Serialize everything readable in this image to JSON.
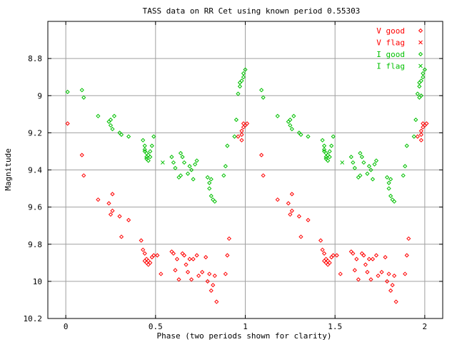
{
  "chart_data": {
    "type": "scatter",
    "title": "TASS data on RR Cet  using known period 0.55303",
    "xlabel": "Phase (two periods shown for clarity)",
    "ylabel": "Magnitude",
    "xlim": [
      -0.1,
      2.1
    ],
    "ylim": [
      10.2,
      8.6
    ],
    "y_inverted": true,
    "grid": true,
    "legend_position": "top-right",
    "x_ticks": [
      0,
      0.5,
      1,
      1.5,
      2
    ],
    "x_tick_labels": [
      "0",
      "0.5",
      "1",
      "1.5",
      "2"
    ],
    "y_ticks": [
      8.8,
      9,
      9.2,
      9.4,
      9.6,
      9.8,
      10,
      10.2
    ],
    "y_tick_labels": [
      "8.8",
      "9",
      "9.2",
      "9.4",
      "9.6",
      "9.8",
      "10",
      "10.2"
    ],
    "series": [
      {
        "name": "V good",
        "marker": "diamond",
        "color": "#ff0000",
        "points": [
          [
            0.01,
            9.15
          ],
          [
            0.09,
            9.32
          ],
          [
            0.1,
            9.43
          ],
          [
            0.18,
            9.56
          ],
          [
            0.24,
            9.58
          ],
          [
            0.25,
            9.64
          ],
          [
            0.26,
            9.62
          ],
          [
            0.26,
            9.53
          ],
          [
            0.3,
            9.65
          ],
          [
            0.31,
            9.76
          ],
          [
            0.35,
            9.67
          ],
          [
            0.42,
            9.78
          ],
          [
            0.43,
            9.83
          ],
          [
            0.44,
            9.89
          ],
          [
            0.44,
            9.85
          ],
          [
            0.45,
            9.9
          ],
          [
            0.45,
            9.88
          ],
          [
            0.46,
            9.91
          ],
          [
            0.46,
            9.89
          ],
          [
            0.47,
            9.9
          ],
          [
            0.48,
            9.87
          ],
          [
            0.49,
            9.86
          ],
          [
            0.51,
            9.86
          ],
          [
            0.53,
            9.96
          ],
          [
            0.59,
            9.84
          ],
          [
            0.6,
            9.85
          ],
          [
            0.61,
            9.94
          ],
          [
            0.62,
            9.88
          ],
          [
            0.63,
            9.99
          ],
          [
            0.65,
            9.85
          ],
          [
            0.66,
            9.86
          ],
          [
            0.67,
            9.91
          ],
          [
            0.68,
            9.95
          ],
          [
            0.69,
            9.88
          ],
          [
            0.7,
            9.99
          ],
          [
            0.71,
            9.88
          ],
          [
            0.73,
            9.86
          ],
          [
            0.74,
            9.97
          ],
          [
            0.76,
            9.95
          ],
          [
            0.78,
            9.87
          ],
          [
            0.79,
            10.0
          ],
          [
            0.8,
            9.96
          ],
          [
            0.81,
            10.05
          ],
          [
            0.82,
            10.02
          ],
          [
            0.83,
            9.97
          ],
          [
            0.84,
            10.11
          ],
          [
            0.89,
            9.96
          ],
          [
            0.9,
            9.86
          ],
          [
            0.91,
            9.77
          ],
          [
            0.96,
            9.22
          ],
          [
            0.98,
            9.24
          ],
          [
            0.98,
            9.21
          ],
          [
            0.98,
            9.19
          ],
          [
            0.99,
            9.17
          ],
          [
            0.99,
            9.15
          ],
          [
            1.0,
            9.16
          ],
          [
            1.01,
            9.15
          ],
          [
            1.09,
            9.32
          ],
          [
            1.1,
            9.43
          ],
          [
            1.18,
            9.56
          ],
          [
            1.24,
            9.58
          ],
          [
            1.25,
            9.64
          ],
          [
            1.26,
            9.62
          ],
          [
            1.26,
            9.53
          ],
          [
            1.3,
            9.65
          ],
          [
            1.31,
            9.76
          ],
          [
            1.35,
            9.67
          ],
          [
            1.42,
            9.78
          ],
          [
            1.43,
            9.83
          ],
          [
            1.44,
            9.89
          ],
          [
            1.44,
            9.85
          ],
          [
            1.45,
            9.9
          ],
          [
            1.45,
            9.88
          ],
          [
            1.46,
            9.91
          ],
          [
            1.46,
            9.89
          ],
          [
            1.47,
            9.9
          ],
          [
            1.48,
            9.87
          ],
          [
            1.49,
            9.86
          ],
          [
            1.51,
            9.86
          ],
          [
            1.53,
            9.96
          ],
          [
            1.59,
            9.84
          ],
          [
            1.6,
            9.85
          ],
          [
            1.61,
            9.94
          ],
          [
            1.62,
            9.88
          ],
          [
            1.63,
            9.99
          ],
          [
            1.65,
            9.85
          ],
          [
            1.66,
            9.86
          ],
          [
            1.67,
            9.91
          ],
          [
            1.68,
            9.95
          ],
          [
            1.69,
            9.88
          ],
          [
            1.7,
            9.99
          ],
          [
            1.71,
            9.88
          ],
          [
            1.73,
            9.86
          ],
          [
            1.74,
            9.97
          ],
          [
            1.76,
            9.95
          ],
          [
            1.78,
            9.87
          ],
          [
            1.79,
            10.0
          ],
          [
            1.8,
            9.96
          ],
          [
            1.81,
            10.05
          ],
          [
            1.82,
            10.02
          ],
          [
            1.83,
            9.97
          ],
          [
            1.84,
            10.11
          ],
          [
            1.89,
            9.96
          ],
          [
            1.9,
            9.86
          ],
          [
            1.91,
            9.77
          ],
          [
            1.96,
            9.22
          ],
          [
            1.98,
            9.24
          ],
          [
            1.98,
            9.21
          ],
          [
            1.98,
            9.19
          ],
          [
            1.99,
            9.17
          ],
          [
            1.99,
            9.15
          ],
          [
            2.0,
            9.16
          ],
          [
            2.01,
            9.15
          ]
        ]
      },
      {
        "name": "V flag",
        "marker": "cross",
        "color": "#ff0000",
        "points": []
      },
      {
        "name": "I good",
        "marker": "diamond",
        "color": "#00c000",
        "points": [
          [
            0.01,
            8.98
          ],
          [
            0.09,
            8.97
          ],
          [
            0.1,
            9.01
          ],
          [
            0.18,
            9.11
          ],
          [
            0.24,
            9.14
          ],
          [
            0.25,
            9.16
          ],
          [
            0.25,
            9.13
          ],
          [
            0.26,
            9.18
          ],
          [
            0.27,
            9.11
          ],
          [
            0.3,
            9.2
          ],
          [
            0.31,
            9.21
          ],
          [
            0.35,
            9.22
          ],
          [
            0.43,
            9.24
          ],
          [
            0.44,
            9.29
          ],
          [
            0.44,
            9.27
          ],
          [
            0.44,
            9.3
          ],
          [
            0.45,
            9.31
          ],
          [
            0.45,
            9.33
          ],
          [
            0.45,
            9.34
          ],
          [
            0.46,
            9.32
          ],
          [
            0.46,
            9.35
          ],
          [
            0.47,
            9.33
          ],
          [
            0.47,
            9.3
          ],
          [
            0.48,
            9.27
          ],
          [
            0.49,
            9.22
          ],
          [
            0.59,
            9.33
          ],
          [
            0.6,
            9.36
          ],
          [
            0.61,
            9.39
          ],
          [
            0.63,
            9.44
          ],
          [
            0.64,
            9.43
          ],
          [
            0.64,
            9.31
          ],
          [
            0.65,
            9.33
          ],
          [
            0.66,
            9.36
          ],
          [
            0.68,
            9.42
          ],
          [
            0.69,
            9.38
          ],
          [
            0.7,
            9.4
          ],
          [
            0.71,
            9.45
          ],
          [
            0.72,
            9.37
          ],
          [
            0.73,
            9.35
          ],
          [
            0.79,
            9.44
          ],
          [
            0.8,
            9.47
          ],
          [
            0.8,
            9.5
          ],
          [
            0.81,
            9.45
          ],
          [
            0.81,
            9.54
          ],
          [
            0.82,
            9.56
          ],
          [
            0.83,
            9.57
          ],
          [
            0.88,
            9.43
          ],
          [
            0.89,
            9.38
          ],
          [
            0.9,
            9.27
          ],
          [
            0.94,
            9.22
          ],
          [
            0.95,
            9.13
          ],
          [
            0.96,
            8.99
          ],
          [
            0.97,
            8.93
          ],
          [
            0.97,
            8.95
          ],
          [
            0.98,
            8.92
          ],
          [
            0.99,
            8.9
          ],
          [
            0.99,
            8.88
          ],
          [
            1.0,
            8.86
          ],
          [
            1.09,
            8.97
          ],
          [
            1.1,
            9.01
          ],
          [
            1.18,
            9.11
          ],
          [
            1.24,
            9.14
          ],
          [
            1.25,
            9.16
          ],
          [
            1.25,
            9.13
          ],
          [
            1.26,
            9.18
          ],
          [
            1.27,
            9.11
          ],
          [
            1.3,
            9.2
          ],
          [
            1.31,
            9.21
          ],
          [
            1.35,
            9.22
          ],
          [
            1.43,
            9.24
          ],
          [
            1.44,
            9.29
          ],
          [
            1.44,
            9.27
          ],
          [
            1.44,
            9.3
          ],
          [
            1.45,
            9.31
          ],
          [
            1.45,
            9.33
          ],
          [
            1.45,
            9.34
          ],
          [
            1.46,
            9.32
          ],
          [
            1.46,
            9.35
          ],
          [
            1.47,
            9.33
          ],
          [
            1.47,
            9.3
          ],
          [
            1.48,
            9.27
          ],
          [
            1.49,
            9.22
          ],
          [
            1.59,
            9.33
          ],
          [
            1.6,
            9.36
          ],
          [
            1.61,
            9.39
          ],
          [
            1.63,
            9.44
          ],
          [
            1.64,
            9.43
          ],
          [
            1.64,
            9.31
          ],
          [
            1.65,
            9.33
          ],
          [
            1.66,
            9.36
          ],
          [
            1.68,
            9.42
          ],
          [
            1.69,
            9.38
          ],
          [
            1.7,
            9.4
          ],
          [
            1.71,
            9.45
          ],
          [
            1.72,
            9.37
          ],
          [
            1.73,
            9.35
          ],
          [
            1.79,
            9.44
          ],
          [
            1.8,
            9.47
          ],
          [
            1.8,
            9.5
          ],
          [
            1.81,
            9.45
          ],
          [
            1.81,
            9.54
          ],
          [
            1.82,
            9.56
          ],
          [
            1.83,
            9.57
          ],
          [
            1.88,
            9.43
          ],
          [
            1.89,
            9.38
          ],
          [
            1.9,
            9.27
          ],
          [
            1.94,
            9.22
          ],
          [
            1.95,
            9.13
          ],
          [
            1.96,
            8.99
          ],
          [
            1.97,
            8.93
          ],
          [
            1.97,
            8.95
          ],
          [
            1.98,
            8.92
          ],
          [
            1.99,
            8.9
          ],
          [
            1.99,
            8.88
          ],
          [
            2.0,
            8.86
          ],
          [
            1.98,
            9.0
          ],
          [
            1.97,
            9.01
          ]
        ]
      },
      {
        "name": "I flag",
        "marker": "cross",
        "color": "#00c000",
        "points": [
          [
            0.54,
            9.36
          ],
          [
            1.54,
            9.36
          ]
        ]
      }
    ]
  }
}
